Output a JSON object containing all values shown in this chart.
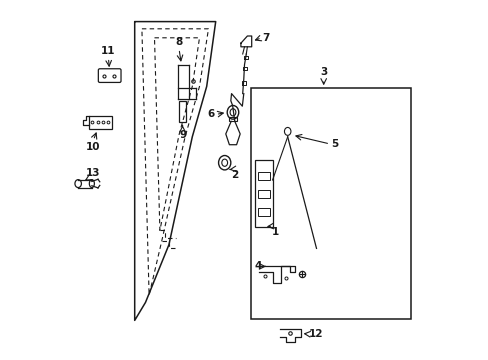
{
  "bg_color": "#ffffff",
  "line_color": "#1a1a1a",
  "dashed_color": "#444444",
  "door_outer": {
    "x": [
      0.195,
      0.42,
      0.395,
      0.355,
      0.29,
      0.225,
      0.195,
      0.195
    ],
    "y": [
      0.94,
      0.94,
      0.76,
      0.62,
      0.32,
      0.16,
      0.11,
      0.94
    ]
  },
  "door_inner1": {
    "x": [
      0.215,
      0.4,
      0.375,
      0.335,
      0.27,
      0.235,
      0.215
    ],
    "y": [
      0.92,
      0.92,
      0.76,
      0.62,
      0.33,
      0.18,
      0.92
    ]
  },
  "door_inner2": {
    "x": [
      0.25,
      0.375,
      0.355,
      0.318,
      0.265,
      0.25
    ],
    "y": [
      0.895,
      0.895,
      0.76,
      0.625,
      0.36,
      0.895
    ]
  }
}
